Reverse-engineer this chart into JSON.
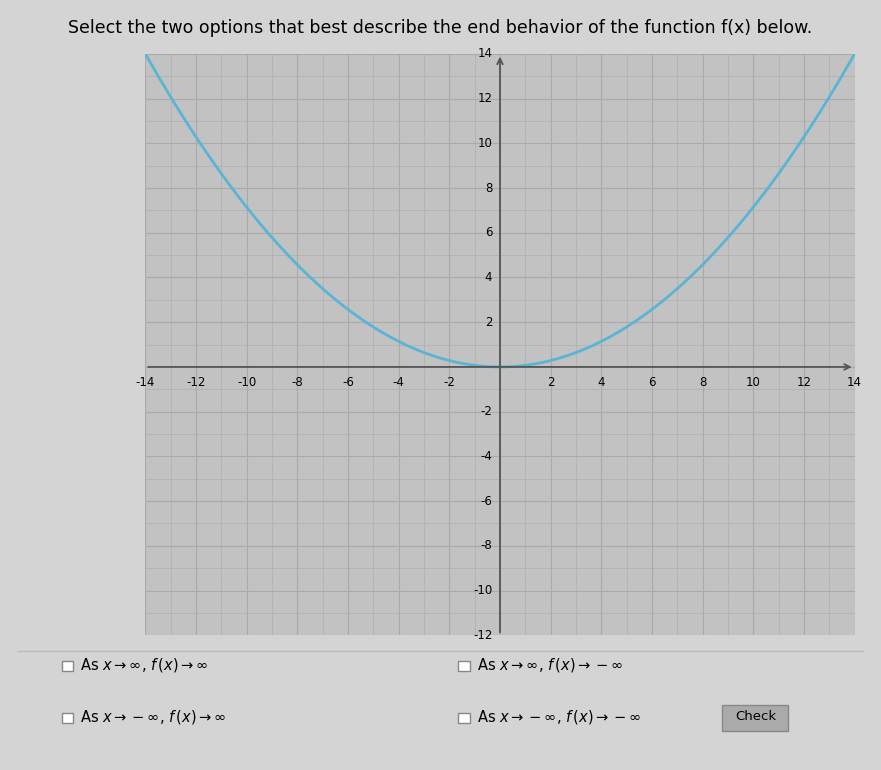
{
  "title": "Select the two options that best describe the end behavior of the function f(x) below.",
  "title_fontsize": 12.5,
  "background_color": "#d4d4d4",
  "plot_bg_color": "#c2c2c2",
  "grid_color": "#aaaaaa",
  "grid_minor_color": "#b8b8b8",
  "curve_color": "#5ab4d4",
  "curve_linewidth": 2.0,
  "xmin": -14,
  "xmax": 14,
  "ymin": -12,
  "ymax": 14,
  "xtick_vals": [
    -14,
    -12,
    -10,
    -8,
    -6,
    -4,
    -2,
    2,
    4,
    6,
    8,
    10,
    12,
    14
  ],
  "ytick_vals": [
    -12,
    -10,
    -8,
    -6,
    -4,
    -2,
    2,
    4,
    6,
    8,
    10,
    12,
    14
  ],
  "tick_fontsize": 8.5,
  "options": [
    {
      "text": "As $x \\rightarrow \\infty$, $f\\,(x) \\rightarrow \\infty$",
      "row": 0,
      "col": 0
    },
    {
      "text": "As $x \\rightarrow \\infty$, $f\\,(x) \\rightarrow -\\infty$",
      "row": 0,
      "col": 1
    },
    {
      "text": "As $x \\rightarrow -\\infty$, $f\\,(x) \\rightarrow \\infty$",
      "row": 1,
      "col": 0
    },
    {
      "text": "As $x \\rightarrow -\\infty$, $f\\,(x) \\rightarrow -\\infty$",
      "row": 1,
      "col": 1
    }
  ],
  "check_button_text": "Check",
  "axis_color": "#555555",
  "separator_color": "#bbbbbb",
  "options_bg": "#d4d4d4"
}
